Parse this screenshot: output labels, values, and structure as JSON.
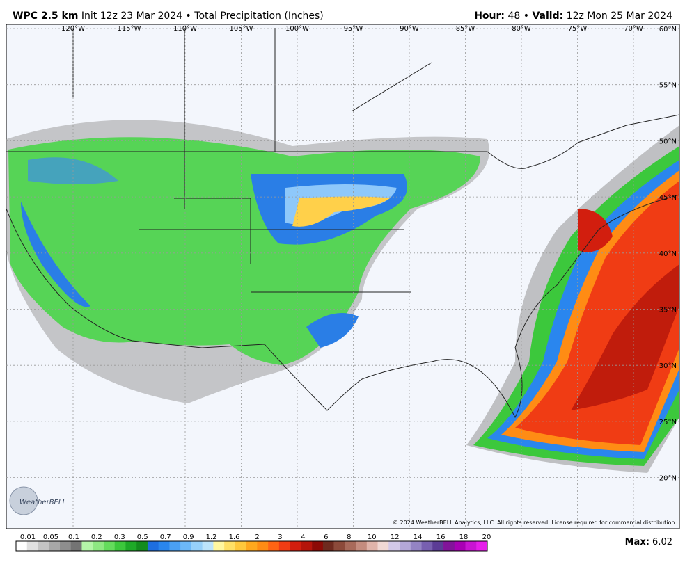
{
  "header": {
    "model": "WPC 2.5 km",
    "init": "Init 12z 23 Mar 2024",
    "separator": "•",
    "product": "Total Precipitation (Inches)",
    "hour_label": "Hour:",
    "hour": "48",
    "valid_label": "Valid:",
    "valid": "12z Mon 25 Mar 2024"
  },
  "map": {
    "longitudes": [
      "120°W",
      "115°W",
      "110°W",
      "105°W",
      "100°W",
      "95°W",
      "90°W",
      "85°W",
      "80°W",
      "75°W",
      "70°W"
    ],
    "latitudes": [
      "60°N",
      "55°N",
      "50°N",
      "45°N",
      "40°N",
      "35°N",
      "30°N",
      "25°N",
      "20°N"
    ],
    "logo": "WeatherBELL",
    "copyright": "© 2024 WeatherBELL Analytics, LLC. All rights reserved. License required for commercial distribution."
  },
  "colorbar": {
    "labels": [
      "0.01",
      "0.05",
      "0.1",
      "0.2",
      "0.3",
      "0.5",
      "0.7",
      "0.9",
      "1.2",
      "1.6",
      "2",
      "3",
      "4",
      "6",
      "8",
      "10",
      "12",
      "14",
      "16",
      "18",
      "20"
    ],
    "colors": [
      "#ffffff",
      "#e0e0e0",
      "#c4c4c4",
      "#a8a8a8",
      "#8e8e8e",
      "#747474",
      "#b4f5a8",
      "#8ee882",
      "#64dc5c",
      "#3cc83c",
      "#1eaa28",
      "#138c1e",
      "#1e6ee0",
      "#2a86ee",
      "#4aa0f4",
      "#6cb8f8",
      "#96d0fa",
      "#bce4fc",
      "#fff7a0",
      "#ffe066",
      "#ffc83c",
      "#ffa81e",
      "#ff8c14",
      "#ff6414",
      "#f03c14",
      "#d21e0e",
      "#b4140a",
      "#8c0a05",
      "#6e2a1e",
      "#8c4a3a",
      "#a86a5a",
      "#c48c7e",
      "#e0b4aa",
      "#f0d8d4",
      "#d2c8e8",
      "#b4a8d8",
      "#9484c4",
      "#7860b0",
      "#5c3c96",
      "#82149a",
      "#a800b4",
      "#c814d2",
      "#e61eea"
    ],
    "max_label": "Max:",
    "max": "6.02"
  }
}
